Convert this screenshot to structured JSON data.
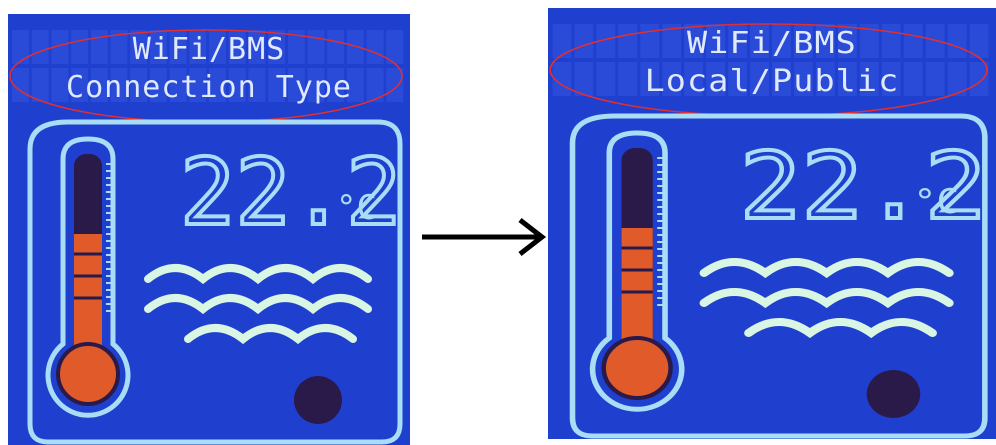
{
  "screens": [
    {
      "line1": "WiFi/BMS",
      "line2": "Connection Type",
      "temperature": "22.2",
      "unit": "°C"
    },
    {
      "line1": "WiFi/BMS",
      "line2": "Local/Public",
      "temperature": "22.2",
      "unit": "°C"
    }
  ]
}
